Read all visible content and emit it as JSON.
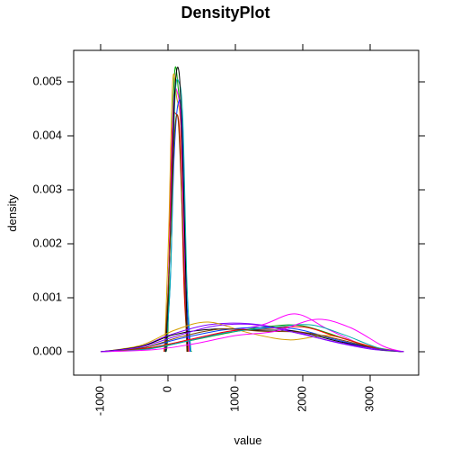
{
  "chart_data": {
    "type": "line",
    "title": "DensityPlot",
    "xlabel": "value",
    "ylabel": "density",
    "xlim": [
      -1000,
      3500
    ],
    "ylim": [
      0,
      0.0052
    ],
    "x_ticks": [
      -1000,
      0,
      1000,
      2000,
      3000
    ],
    "x_tick_labels": [
      "-1000",
      "0",
      "1000",
      "2000",
      "3000"
    ],
    "y_ticks": [
      0,
      0.001,
      0.002,
      0.003,
      0.004,
      0.005
    ],
    "y_tick_labels": [
      "0.000",
      "0.001",
      "0.002",
      "0.003",
      "0.004",
      "0.005"
    ],
    "grid": false,
    "legend": "none",
    "series": [
      {
        "color": "#00a000",
        "values": {
          "x": [
            -50,
            0,
            50,
            100,
            150,
            200,
            250,
            300,
            350
          ],
          "y": [
            0,
            0.0004,
            0.0035,
            0.0052,
            0.0049,
            0.004,
            0.0012,
            0.0002,
            0
          ]
        }
      },
      {
        "color": "#ff0000",
        "values": {
          "x": [
            -60,
            0,
            60,
            120,
            180,
            240,
            300
          ],
          "y": [
            0,
            0.001,
            0.004,
            0.0044,
            0.0039,
            0.0011,
            0
          ]
        }
      },
      {
        "color": "#d4a000",
        "values": {
          "x": [
            -50,
            10,
            70,
            130,
            190,
            250,
            310
          ],
          "y": [
            0,
            0.0022,
            0.005,
            0.0047,
            0.0041,
            0.0014,
            0
          ]
        }
      },
      {
        "color": "#ff00ff",
        "values": {
          "x": [
            -40,
            20,
            80,
            140,
            200,
            260,
            320
          ],
          "y": [
            0,
            0.0018,
            0.0045,
            0.0048,
            0.004,
            0.001,
            0
          ]
        }
      },
      {
        "color": "#0040ff",
        "values": {
          "x": [
            -40,
            30,
            90,
            150,
            210,
            270,
            330
          ],
          "y": [
            0,
            0.0012,
            0.0036,
            0.0046,
            0.0042,
            0.0012,
            0
          ]
        }
      },
      {
        "color": "#00aaaa",
        "values": {
          "x": [
            -30,
            40,
            100,
            160,
            220,
            280,
            340
          ],
          "y": [
            0,
            0.0015,
            0.0046,
            0.005,
            0.0043,
            0.0013,
            0
          ]
        }
      },
      {
        "color": "#000000",
        "values": {
          "x": [
            -30,
            30,
            100,
            170,
            230,
            290
          ],
          "y": [
            0,
            0.002,
            0.0048,
            0.0051,
            0.003,
            0
          ]
        }
      },
      {
        "color": "#7a3f00",
        "values": {
          "x": [
            -50,
            20,
            90,
            150,
            210,
            280
          ],
          "y": [
            0,
            0.0016,
            0.0039,
            0.0043,
            0.0026,
            0
          ]
        }
      },
      {
        "color": "#8000ff",
        "values": {
          "x": [
            -1000,
            -400,
            0,
            600,
            1200,
            1800,
            2400,
            3000,
            3500
          ],
          "y": [
            0,
            0.0001,
            0.0003,
            0.0005,
            0.00052,
            0.0004,
            0.0002,
            5e-05,
            0
          ]
        }
      },
      {
        "color": "#ff00ff",
        "values": {
          "x": [
            -1000,
            -300,
            200,
            800,
            1400,
            1900,
            2400,
            3000,
            3500
          ],
          "y": [
            0,
            5e-05,
            0.00018,
            0.00035,
            0.0005,
            0.0007,
            0.0004,
            8e-05,
            0
          ]
        }
      },
      {
        "color": "#d4a000",
        "values": {
          "x": [
            -1000,
            -400,
            100,
            600,
            1200,
            1800,
            2400,
            3000,
            3500
          ],
          "y": [
            0,
            0.00012,
            0.0004,
            0.00055,
            0.00035,
            0.00022,
            0.0003,
            0.0001,
            0
          ]
        }
      },
      {
        "color": "#00a000",
        "values": {
          "x": [
            -1000,
            -300,
            300,
            900,
            1500,
            2000,
            2600,
            3100,
            3500
          ],
          "y": [
            0,
            6e-05,
            0.0002,
            0.00035,
            0.00047,
            0.00048,
            0.00025,
            5e-05,
            0
          ]
        }
      },
      {
        "color": "#0040ff",
        "values": {
          "x": [
            -1000,
            -350,
            200,
            800,
            1300,
            1900,
            2500,
            3100,
            3500
          ],
          "y": [
            0,
            8e-05,
            0.00025,
            0.0004,
            0.00045,
            0.00042,
            0.00022,
            6e-05,
            0
          ]
        }
      },
      {
        "color": "#ff0000",
        "values": {
          "x": [
            -1000,
            -300,
            300,
            900,
            1400,
            2000,
            2500,
            3100,
            3500
          ],
          "y": [
            0,
            7e-05,
            0.00022,
            0.00038,
            0.00042,
            0.00046,
            0.00028,
            7e-05,
            0
          ]
        }
      },
      {
        "color": "#000000",
        "values": {
          "x": [
            -1000,
            -400,
            100,
            700,
            1300,
            1900,
            2500,
            3100,
            3500
          ],
          "y": [
            0,
            0.0001,
            0.00032,
            0.00042,
            0.0004,
            0.00038,
            0.0002,
            5e-05,
            0
          ]
        }
      },
      {
        "color": "#00aaaa",
        "values": {
          "x": [
            -1000,
            -300,
            300,
            900,
            1500,
            2100,
            2600,
            3100,
            3500
          ],
          "y": [
            0,
            5e-05,
            0.0002,
            0.00036,
            0.00044,
            0.0005,
            0.00032,
            8e-05,
            0
          ]
        }
      },
      {
        "color": "#7a3f00",
        "values": {
          "x": [
            -1000,
            -350,
            200,
            800,
            1400,
            2000,
            2500,
            3100,
            3500
          ],
          "y": [
            0,
            8e-05,
            0.00028,
            0.00042,
            0.00038,
            0.00036,
            0.00024,
            6e-05,
            0
          ]
        }
      },
      {
        "color": "#ff00ff",
        "values": {
          "x": [
            -1000,
            -200,
            400,
            1000,
            1600,
            2200,
            2700,
            3200,
            3500
          ],
          "y": [
            0,
            4e-05,
            0.00015,
            0.0003,
            0.00038,
            0.0006,
            0.00045,
            0.0001,
            0
          ]
        }
      },
      {
        "color": "#8000ff",
        "values": {
          "x": [
            -1000,
            -400,
            150,
            700,
            1300,
            1900,
            2500,
            3100,
            3500
          ],
          "y": [
            0,
            9e-05,
            0.0003,
            0.00048,
            0.0005,
            0.00035,
            0.00018,
            5e-05,
            0
          ]
        }
      }
    ]
  }
}
